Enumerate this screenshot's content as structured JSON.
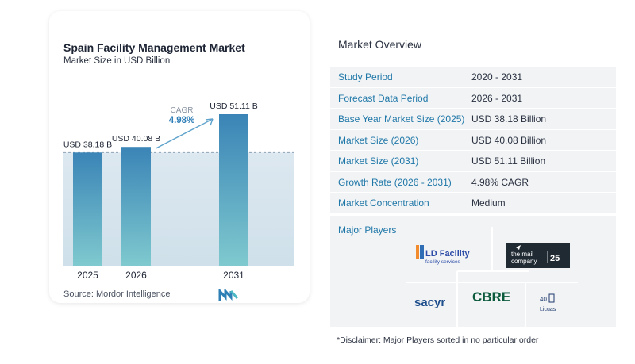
{
  "chart": {
    "title": "Spain Facility Management Market",
    "subtitle": "Market Size in USD Billion",
    "source": "Source:  Mordor Intelligence",
    "cagr_label": "CAGR",
    "cagr_value": "4.98%"
  },
  "chart_data": {
    "type": "bar",
    "categories": [
      "2025",
      "2026",
      "2031"
    ],
    "values": [
      38.18,
      40.08,
      51.11
    ],
    "data_labels": [
      "USD 38.18 B",
      "USD 40.08 B",
      "USD 51.11 B"
    ],
    "title": "Spain Facility Management Market",
    "subtitle": "Market Size in USD Billion",
    "ylim": [
      0,
      51.11
    ],
    "grid": false,
    "annotation": {
      "label": "CAGR",
      "value": "4.98%",
      "from": "2026",
      "to": "2031"
    },
    "colors": {
      "bar_top": "#3a84b7",
      "bar_bottom": "#7fc9cf",
      "background_band": "#d8e6ef",
      "arrow": "#5fa3cc"
    }
  },
  "overview": {
    "title": "Market Overview",
    "rows": [
      {
        "key": "Study Period",
        "value": "2020 - 2031"
      },
      {
        "key": "Forecast Data Period",
        "value": "2026 - 2031"
      },
      {
        "key": "Base Year Market Size (2025)",
        "value": "USD 38.18 Billion"
      },
      {
        "key": "Market Size (2026)",
        "value": "USD 40.08 Billion"
      },
      {
        "key": "Market Size (2031)",
        "value": "USD 51.11 Billion"
      },
      {
        "key": "Growth Rate (2026 - 2031)",
        "value": "4.98% CAGR"
      },
      {
        "key": "Market Concentration",
        "value": "Medium"
      }
    ]
  },
  "players": {
    "title": "Major Players",
    "logos": {
      "ld_facility": {
        "line1": "LD Facility",
        "line2": "facility services",
        "mark": "LD"
      },
      "mail_company": {
        "line1": "the mail",
        "line2": "company",
        "badge": "25"
      },
      "sacyr": {
        "text": "sacyr"
      },
      "cbre": {
        "text": "CBRE"
      },
      "licuas": {
        "text": "Licuas",
        "mark": "40"
      }
    }
  },
  "disclaimer": "*Disclaimer: Major Players sorted in no particular order",
  "colors": {
    "accent": "#1f77a8",
    "table_bg": "#f1f3f5",
    "cbre_green": "#0b5a3c"
  }
}
